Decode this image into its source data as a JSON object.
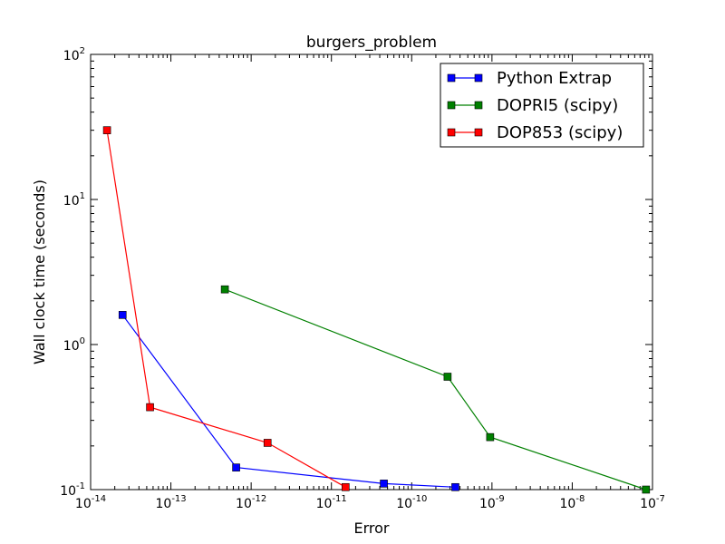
{
  "chart_data": {
    "type": "line",
    "title": "burgers_problem",
    "xlabel": "Error",
    "ylabel": "Wall clock time (seconds)",
    "xscale": "log",
    "yscale": "log",
    "xlim": [
      1e-14,
      1e-07
    ],
    "ylim": [
      0.1,
      100
    ],
    "grid": false,
    "legend_position": "top-right",
    "x_ticks": [
      {
        "value": 1e-14,
        "base": "10",
        "exp": "-14"
      },
      {
        "value": 1e-13,
        "base": "10",
        "exp": "-13"
      },
      {
        "value": 1e-12,
        "base": "10",
        "exp": "-12"
      },
      {
        "value": 1e-11,
        "base": "10",
        "exp": "-11"
      },
      {
        "value": 1e-10,
        "base": "10",
        "exp": "-10"
      },
      {
        "value": 1e-09,
        "base": "10",
        "exp": "-9"
      },
      {
        "value": 1e-08,
        "base": "10",
        "exp": "-8"
      },
      {
        "value": 1e-07,
        "base": "10",
        "exp": "-7"
      }
    ],
    "y_ticks": [
      {
        "value": 0.1,
        "base": "10",
        "exp": "-1"
      },
      {
        "value": 1,
        "base": "10",
        "exp": "0"
      },
      {
        "value": 10,
        "base": "10",
        "exp": "1"
      },
      {
        "value": 100,
        "base": "10",
        "exp": "2"
      }
    ],
    "series": [
      {
        "name": "Python Extrap",
        "color": "#0000ff",
        "x": [
          2.5e-14,
          6.5e-13,
          4.5e-11,
          3.5e-10
        ],
        "y": [
          1.6,
          0.142,
          0.11,
          0.104
        ]
      },
      {
        "name": "DOPRI5 (scipy)",
        "color": "#008000",
        "x": [
          4.7e-13,
          2.8e-10,
          9.5e-10,
          8.3e-08
        ],
        "y": [
          2.4,
          0.6,
          0.23,
          0.1
        ]
      },
      {
        "name": "DOP853 (scipy)",
        "color": "#ff0000",
        "x": [
          1.6e-14,
          5.5e-14,
          1.6e-12,
          1.5e-11
        ],
        "y": [
          30,
          0.37,
          0.21,
          0.104
        ]
      }
    ]
  }
}
